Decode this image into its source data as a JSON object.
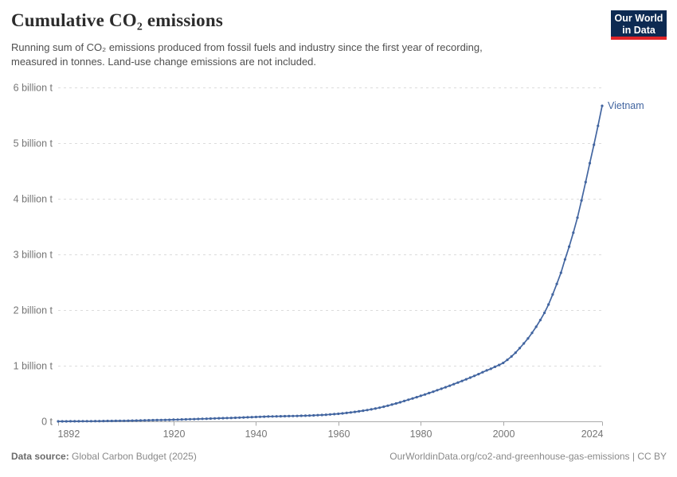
{
  "header": {
    "title": "Cumulative CO₂ emissions",
    "subtitle_line1": "Running sum of CO₂ emissions produced from fossil fuels and industry since the first year of recording,",
    "subtitle_line2": "measured in tonnes. Land-use change emissions are not included.",
    "logo": {
      "line1": "Our World",
      "line2": "in Data",
      "bg_color": "#0d2a52",
      "bar_color": "#e02428"
    }
  },
  "footer": {
    "datasource_label": "Data source:",
    "datasource_value": "Global Carbon Budget (2025)",
    "right_text": "OurWorldinData.org/co2-and-greenhouse-gas-emissions | CC BY"
  },
  "chart_data": {
    "type": "line",
    "title": "Cumulative CO₂ emissions",
    "entity": "Vietnam",
    "unit": "tonnes",
    "value_scale": "billion tonnes",
    "line_color": "#4265a0",
    "grid": "dashed-horizontal",
    "legend_position": "end-of-line-label",
    "ylim": [
      0,
      6
    ],
    "xlim": [
      1892,
      2024
    ],
    "y_ticks": [
      {
        "value": 0,
        "label": "0 t"
      },
      {
        "value": 1,
        "label": "1 billion t"
      },
      {
        "value": 2,
        "label": "2 billion t"
      },
      {
        "value": 3,
        "label": "3 billion t"
      },
      {
        "value": 4,
        "label": "4 billion t"
      },
      {
        "value": 5,
        "label": "5 billion t"
      },
      {
        "value": 6,
        "label": "6 billion t"
      }
    ],
    "x_ticks": [
      1892,
      1920,
      1940,
      1960,
      1980,
      2000,
      2024
    ],
    "years": [
      1892,
      1893,
      1894,
      1895,
      1896,
      1897,
      1898,
      1899,
      1900,
      1901,
      1902,
      1903,
      1904,
      1905,
      1906,
      1907,
      1908,
      1909,
      1910,
      1911,
      1912,
      1913,
      1914,
      1915,
      1916,
      1917,
      1918,
      1919,
      1920,
      1921,
      1922,
      1923,
      1924,
      1925,
      1926,
      1927,
      1928,
      1929,
      1930,
      1931,
      1932,
      1933,
      1934,
      1935,
      1936,
      1937,
      1938,
      1939,
      1940,
      1941,
      1942,
      1943,
      1944,
      1945,
      1946,
      1947,
      1948,
      1949,
      1950,
      1951,
      1952,
      1953,
      1954,
      1955,
      1956,
      1957,
      1958,
      1959,
      1960,
      1961,
      1962,
      1963,
      1964,
      1965,
      1966,
      1967,
      1968,
      1969,
      1970,
      1971,
      1972,
      1973,
      1974,
      1975,
      1976,
      1977,
      1978,
      1979,
      1980,
      1981,
      1982,
      1983,
      1984,
      1985,
      1986,
      1987,
      1988,
      1989,
      1990,
      1991,
      1992,
      1993,
      1994,
      1995,
      1996,
      1997,
      1998,
      1999,
      2000,
      2001,
      2002,
      2003,
      2004,
      2005,
      2006,
      2007,
      2008,
      2009,
      2010,
      2011,
      2012,
      2013,
      2014,
      2015,
      2016,
      2017,
      2018,
      2019,
      2020,
      2021,
      2022,
      2023,
      2024
    ],
    "values": [
      0.0002,
      0.0004,
      0.0007,
      0.001,
      0.0014,
      0.0018,
      0.0023,
      0.0028,
      0.0034,
      0.0041,
      0.0048,
      0.0056,
      0.0065,
      0.0074,
      0.0084,
      0.0095,
      0.0107,
      0.012,
      0.0134,
      0.0148,
      0.0163,
      0.0179,
      0.0195,
      0.021,
      0.0225,
      0.0241,
      0.0258,
      0.0276,
      0.0295,
      0.0315,
      0.0336,
      0.0358,
      0.0381,
      0.0404,
      0.0428,
      0.0452,
      0.0477,
      0.0502,
      0.0527,
      0.0551,
      0.0574,
      0.0597,
      0.0621,
      0.0646,
      0.0672,
      0.07,
      0.0729,
      0.0759,
      0.079,
      0.082,
      0.0847,
      0.0871,
      0.089,
      0.0903,
      0.0914,
      0.0926,
      0.094,
      0.0956,
      0.0974,
      0.0995,
      0.1019,
      0.1046,
      0.1076,
      0.111,
      0.1148,
      0.1191,
      0.124,
      0.1296,
      0.136,
      0.1432,
      0.1512,
      0.16,
      0.1696,
      0.18,
      0.1912,
      0.2032,
      0.216,
      0.23,
      0.2455,
      0.2625,
      0.281,
      0.301,
      0.322,
      0.3435,
      0.3655,
      0.388,
      0.411,
      0.4345,
      0.4585,
      0.483,
      0.508,
      0.5335,
      0.5595,
      0.586,
      0.613,
      0.6405,
      0.6685,
      0.697,
      0.726,
      0.7555,
      0.7855,
      0.8165,
      0.849,
      0.8835,
      0.915,
      0.945,
      0.98,
      1.013,
      1.05,
      1.105,
      1.165,
      1.235,
      1.315,
      1.4,
      1.49,
      1.59,
      1.7,
      1.82,
      1.95,
      2.1,
      2.28,
      2.47,
      2.67,
      2.91,
      3.14,
      3.39,
      3.66,
      3.97,
      4.3,
      4.64,
      4.97,
      5.31,
      5.67
    ]
  }
}
